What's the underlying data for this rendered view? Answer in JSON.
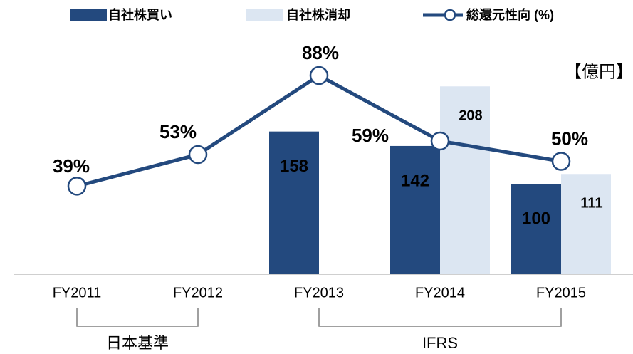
{
  "chart_data": {
    "type": "bar",
    "categories": [
      "FY2011",
      "FY2012",
      "FY2013",
      "FY2014",
      "FY2015"
    ],
    "series": [
      {
        "name": "自社株買い",
        "color": "#23497e",
        "values": [
          null,
          null,
          158,
          142,
          100
        ]
      },
      {
        "name": "自社株消却",
        "color": "#dce6f2",
        "values": [
          null,
          null,
          null,
          208,
          111
        ]
      },
      {
        "name": "総還元性向 (%)",
        "type": "line",
        "axis": "y2",
        "color": "#23497e",
        "values": [
          39,
          53,
          88,
          59,
          50
        ],
        "value_labels": [
          "39%",
          "53%",
          "88%",
          "59%",
          "50%"
        ]
      }
    ],
    "ylim": [
      0,
      250
    ],
    "y2lim": [
      0,
      100
    ],
    "unit_label": "【億円】",
    "groups": [
      {
        "label": "日本基準"
      },
      {
        "label": "IFRS"
      }
    ]
  }
}
